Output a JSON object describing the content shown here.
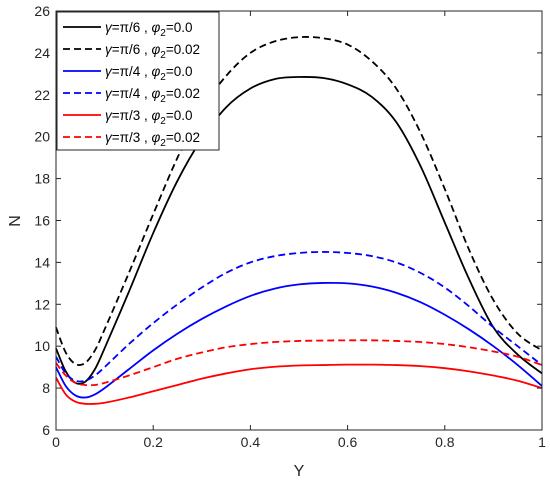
{
  "chart_data": {
    "type": "line",
    "xlabel": "Y",
    "ylabel": "N",
    "xlim": [
      0,
      1
    ],
    "ylim": [
      6,
      26
    ],
    "xticks": [
      "0",
      "0.2",
      "0.4",
      "0.6",
      "0.8",
      "1"
    ],
    "yticks": [
      "6",
      "8",
      "10",
      "12",
      "14",
      "16",
      "18",
      "20",
      "22",
      "24",
      "26"
    ],
    "grid": false,
    "legend_position": "top-left",
    "x": [
      0,
      0.02,
      0.04,
      0.06,
      0.08,
      0.1,
      0.15,
      0.2,
      0.25,
      0.3,
      0.35,
      0.4,
      0.45,
      0.5,
      0.55,
      0.6,
      0.65,
      0.7,
      0.75,
      0.8,
      0.85,
      0.9,
      0.95,
      1.0
    ],
    "series": [
      {
        "name": "γ=π/6 , φ2=0.0",
        "color": "#000000",
        "dash": "solid",
        "values": [
          9.9,
          8.8,
          8.25,
          8.3,
          8.9,
          9.9,
          12.6,
          15.4,
          17.9,
          19.9,
          21.4,
          22.3,
          22.75,
          22.85,
          22.8,
          22.5,
          21.9,
          20.7,
          18.6,
          15.9,
          13.2,
          10.9,
          9.6,
          8.7
        ]
      },
      {
        "name": "γ=π/6 , φ2=0.02",
        "color": "#000000",
        "dash": "dashed",
        "values": [
          10.9,
          9.7,
          9.15,
          9.2,
          9.8,
          10.8,
          13.5,
          16.3,
          19.0,
          21.3,
          22.9,
          24.0,
          24.55,
          24.75,
          24.7,
          24.4,
          23.6,
          22.3,
          20.2,
          17.5,
          14.6,
          12.2,
          10.6,
          9.8
        ]
      },
      {
        "name": "γ=π/4 , φ2=0.0",
        "color": "#0000ff",
        "dash": "solid",
        "values": [
          9.0,
          8.1,
          7.65,
          7.55,
          7.7,
          8.0,
          8.9,
          9.8,
          10.6,
          11.3,
          11.9,
          12.4,
          12.75,
          12.95,
          13.02,
          13.0,
          12.85,
          12.55,
          12.1,
          11.5,
          10.8,
          10.0,
          9.1,
          8.1
        ]
      },
      {
        "name": "γ=π/4 , φ2=0.02",
        "color": "#0000ff",
        "dash": "dashed",
        "values": [
          9.5,
          8.7,
          8.35,
          8.35,
          8.6,
          9.0,
          10.1,
          11.1,
          12.0,
          12.8,
          13.5,
          14.0,
          14.3,
          14.45,
          14.5,
          14.45,
          14.3,
          14.0,
          13.5,
          12.8,
          11.9,
          10.9,
          10.0,
          9.1
        ]
      },
      {
        "name": "γ=π/3 , φ2=0.0",
        "color": "#ff0000",
        "dash": "solid",
        "values": [
          8.5,
          7.7,
          7.35,
          7.25,
          7.25,
          7.3,
          7.55,
          7.85,
          8.15,
          8.45,
          8.7,
          8.9,
          9.02,
          9.08,
          9.1,
          9.12,
          9.12,
          9.1,
          9.05,
          8.95,
          8.8,
          8.6,
          8.35,
          8.0
        ]
      },
      {
        "name": "γ=π/3 , φ2=0.02",
        "color": "#ff0000",
        "dash": "dashed",
        "values": [
          9.2,
          8.6,
          8.25,
          8.15,
          8.15,
          8.25,
          8.6,
          9.0,
          9.4,
          9.7,
          9.95,
          10.1,
          10.2,
          10.25,
          10.27,
          10.28,
          10.28,
          10.25,
          10.2,
          10.1,
          9.95,
          9.75,
          9.5,
          9.1
        ]
      }
    ],
    "legend": [
      {
        "greek": "γ",
        "eq": "=π/6 , ",
        "phi": "φ",
        "sub": "2",
        "rest": "=0.0"
      },
      {
        "greek": "γ",
        "eq": "=π/6 , ",
        "phi": "φ",
        "sub": "2",
        "rest": "=0.02"
      },
      {
        "greek": "γ",
        "eq": "=π/4 , ",
        "phi": "φ",
        "sub": "2",
        "rest": "=0.0"
      },
      {
        "greek": "γ",
        "eq": "=π/4 , ",
        "phi": "φ",
        "sub": "2",
        "rest": "=0.02"
      },
      {
        "greek": "γ",
        "eq": "=π/3 , ",
        "phi": "φ",
        "sub": "2",
        "rest": "=0.0"
      },
      {
        "greek": "γ",
        "eq": "=π/3 , ",
        "phi": "φ",
        "sub": "2",
        "rest": "=0.02"
      }
    ]
  }
}
